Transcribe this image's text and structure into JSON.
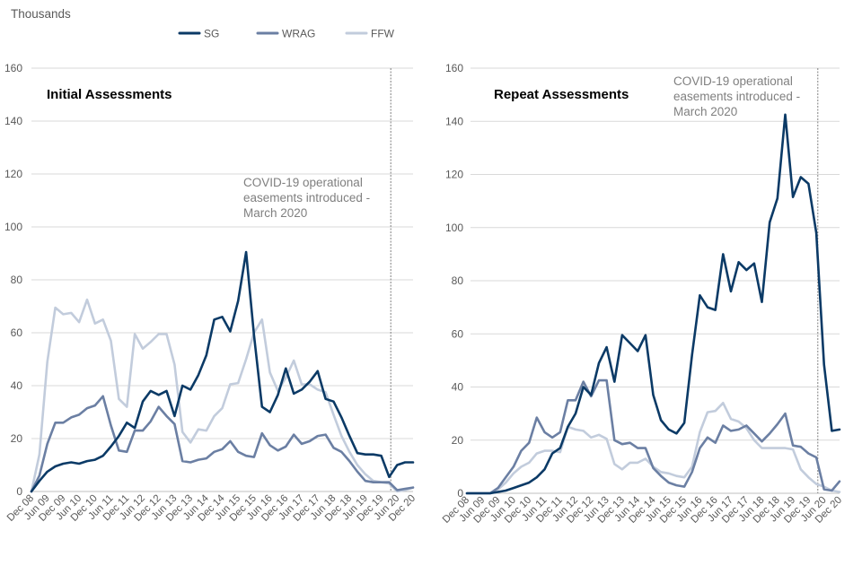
{
  "unit_label": "Thousands",
  "colors": {
    "SG": "#0b3a66",
    "WRAG": "#6b7fa3",
    "FFW": "#c2ccdc",
    "grid": "#d9d9d9",
    "covid_line": "#7f7f7f"
  },
  "legend": [
    {
      "key": "SG",
      "label": "SG"
    },
    {
      "key": "WRAG",
      "label": "WRAG"
    },
    {
      "key": "FFW",
      "label": "FFW"
    }
  ],
  "chart_data": [
    {
      "type": "line",
      "title": "Initial Assessments",
      "ylim": [
        0,
        160
      ],
      "yticks": [
        0,
        20,
        40,
        60,
        80,
        100,
        120,
        140,
        160
      ],
      "x_tick_labels": [
        "Dec 08",
        "Jun 09",
        "Dec 09",
        "Jun 10",
        "Dec 10",
        "Jun 11",
        "Dec 11",
        "Jun 12",
        "Dec 12",
        "Jun 13",
        "Dec 13",
        "Jun 14",
        "Dec 14",
        "Jun 15",
        "Dec 15",
        "Jun 16",
        "Dec 16",
        "Jun 17",
        "Dec 17",
        "Jun 18",
        "Dec 18",
        "Jun 19",
        "Dec 19",
        "Jun 20",
        "Dec 20"
      ],
      "x_range_quarters": [
        0,
        48
      ],
      "covid_marker_quarter": 45.2,
      "annotation": [
        "COVID-19 operational",
        "easements introduced -",
        "March 2020"
      ],
      "series": [
        {
          "name": "SG",
          "values": [
            0,
            4,
            7.5,
            9.5,
            10.5,
            11,
            10.5,
            11.5,
            12,
            13.5,
            17,
            21,
            26,
            24,
            34,
            38,
            36.5,
            38,
            28.5,
            40,
            38.5,
            44,
            51.5,
            65,
            66,
            60.5,
            72,
            90.5,
            59,
            32,
            30,
            36.5,
            46.5,
            37,
            38.5,
            41.5,
            45.5,
            35,
            34,
            28,
            21,
            14.5,
            14,
            14,
            13.5,
            5.5,
            10,
            11,
            11
          ]
        },
        {
          "name": "WRAG",
          "values": [
            0,
            6,
            18,
            26,
            26,
            28,
            29,
            31.5,
            32.5,
            36,
            25,
            15.5,
            15,
            23,
            23,
            26.5,
            32,
            28.5,
            25.5,
            11.5,
            11,
            12,
            12.5,
            15,
            16,
            19,
            15,
            13.5,
            13,
            22,
            17.5,
            15.5,
            17,
            21.5,
            18,
            19,
            21,
            21.5,
            16.5,
            15,
            11.5,
            7.5,
            4,
            3.5,
            3.5,
            3.5,
            0.5,
            1,
            1.5
          ]
        },
        {
          "name": "FFW",
          "values": [
            0,
            14,
            49,
            69.5,
            67,
            67.5,
            64,
            72.5,
            63.5,
            65,
            57,
            35,
            32,
            59.5,
            54,
            56.5,
            59.5,
            59.5,
            48,
            22.5,
            18.5,
            23.5,
            23,
            28.5,
            31.5,
            40.5,
            41,
            50,
            60,
            65,
            45,
            38,
            43,
            49.5,
            40.5,
            40.5,
            38.5,
            37.5,
            29,
            21,
            15,
            10,
            6.5,
            4,
            3.5,
            3,
            0,
            0.5,
            1.5
          ]
        }
      ]
    },
    {
      "type": "line",
      "title": "Repeat Assessments",
      "ylim": [
        0,
        160
      ],
      "yticks": [
        0,
        20,
        40,
        60,
        80,
        100,
        120,
        140,
        160
      ],
      "x_tick_labels": [
        "Dec 08",
        "Jun 09",
        "Dec 09",
        "Jun 10",
        "Dec 10",
        "Jun 11",
        "Dec 11",
        "Jun 12",
        "Dec 12",
        "Jun 13",
        "Dec 13",
        "Jun 14",
        "Dec 14",
        "Jun 15",
        "Dec 15",
        "Jun 16",
        "Dec 16",
        "Jun 17",
        "Dec 17",
        "Jun 18",
        "Dec 18",
        "Jun 19",
        "Dec 19",
        "Jun 20",
        "Dec 20"
      ],
      "x_range_quarters": [
        0,
        48
      ],
      "covid_marker_quarter": 45.2,
      "annotation": [
        "COVID-19 operational",
        "easements introduced -",
        "March 2020"
      ],
      "series": [
        {
          "name": "SG",
          "values": [
            0,
            0,
            0,
            0,
            0.5,
            1,
            2,
            3,
            4,
            6,
            9,
            15,
            17,
            25,
            30,
            40,
            37,
            49,
            55,
            42,
            59.5,
            56.5,
            53.5,
            59.5,
            37,
            27.5,
            24,
            22.5,
            26.5,
            52,
            74.5,
            70,
            69,
            90,
            76,
            87,
            84,
            86.5,
            72,
            102,
            111,
            142.5,
            111.5,
            119,
            116.5,
            98,
            48.5,
            23.5,
            24
          ]
        },
        {
          "name": "WRAG",
          "values": [
            0,
            0,
            0,
            0,
            2,
            6,
            10,
            16,
            19,
            28.5,
            23,
            21,
            23,
            35,
            35,
            42,
            36.5,
            42.5,
            42.5,
            20,
            18.5,
            19,
            17,
            17,
            9.5,
            6.5,
            4,
            3,
            2.5,
            8,
            17,
            21,
            19,
            25.5,
            23.5,
            24,
            25.5,
            22.5,
            19.5,
            22.5,
            26,
            30,
            18,
            17.5,
            15,
            13.5,
            1.5,
            1,
            4.5
          ]
        },
        {
          "name": "FFW",
          "values": [
            0,
            0,
            0,
            0,
            1.5,
            4,
            7.5,
            10,
            11.5,
            15,
            16,
            16,
            15.5,
            25,
            24,
            23.5,
            21,
            22,
            20.5,
            11,
            9,
            11.5,
            11.5,
            13,
            10,
            8,
            7.5,
            6.5,
            6,
            10,
            23,
            30.5,
            31,
            34,
            28,
            27,
            24.5,
            20,
            17,
            17,
            17,
            17,
            16.5,
            9,
            6,
            3.5,
            2.5,
            1,
            0.5
          ]
        }
      ]
    }
  ]
}
